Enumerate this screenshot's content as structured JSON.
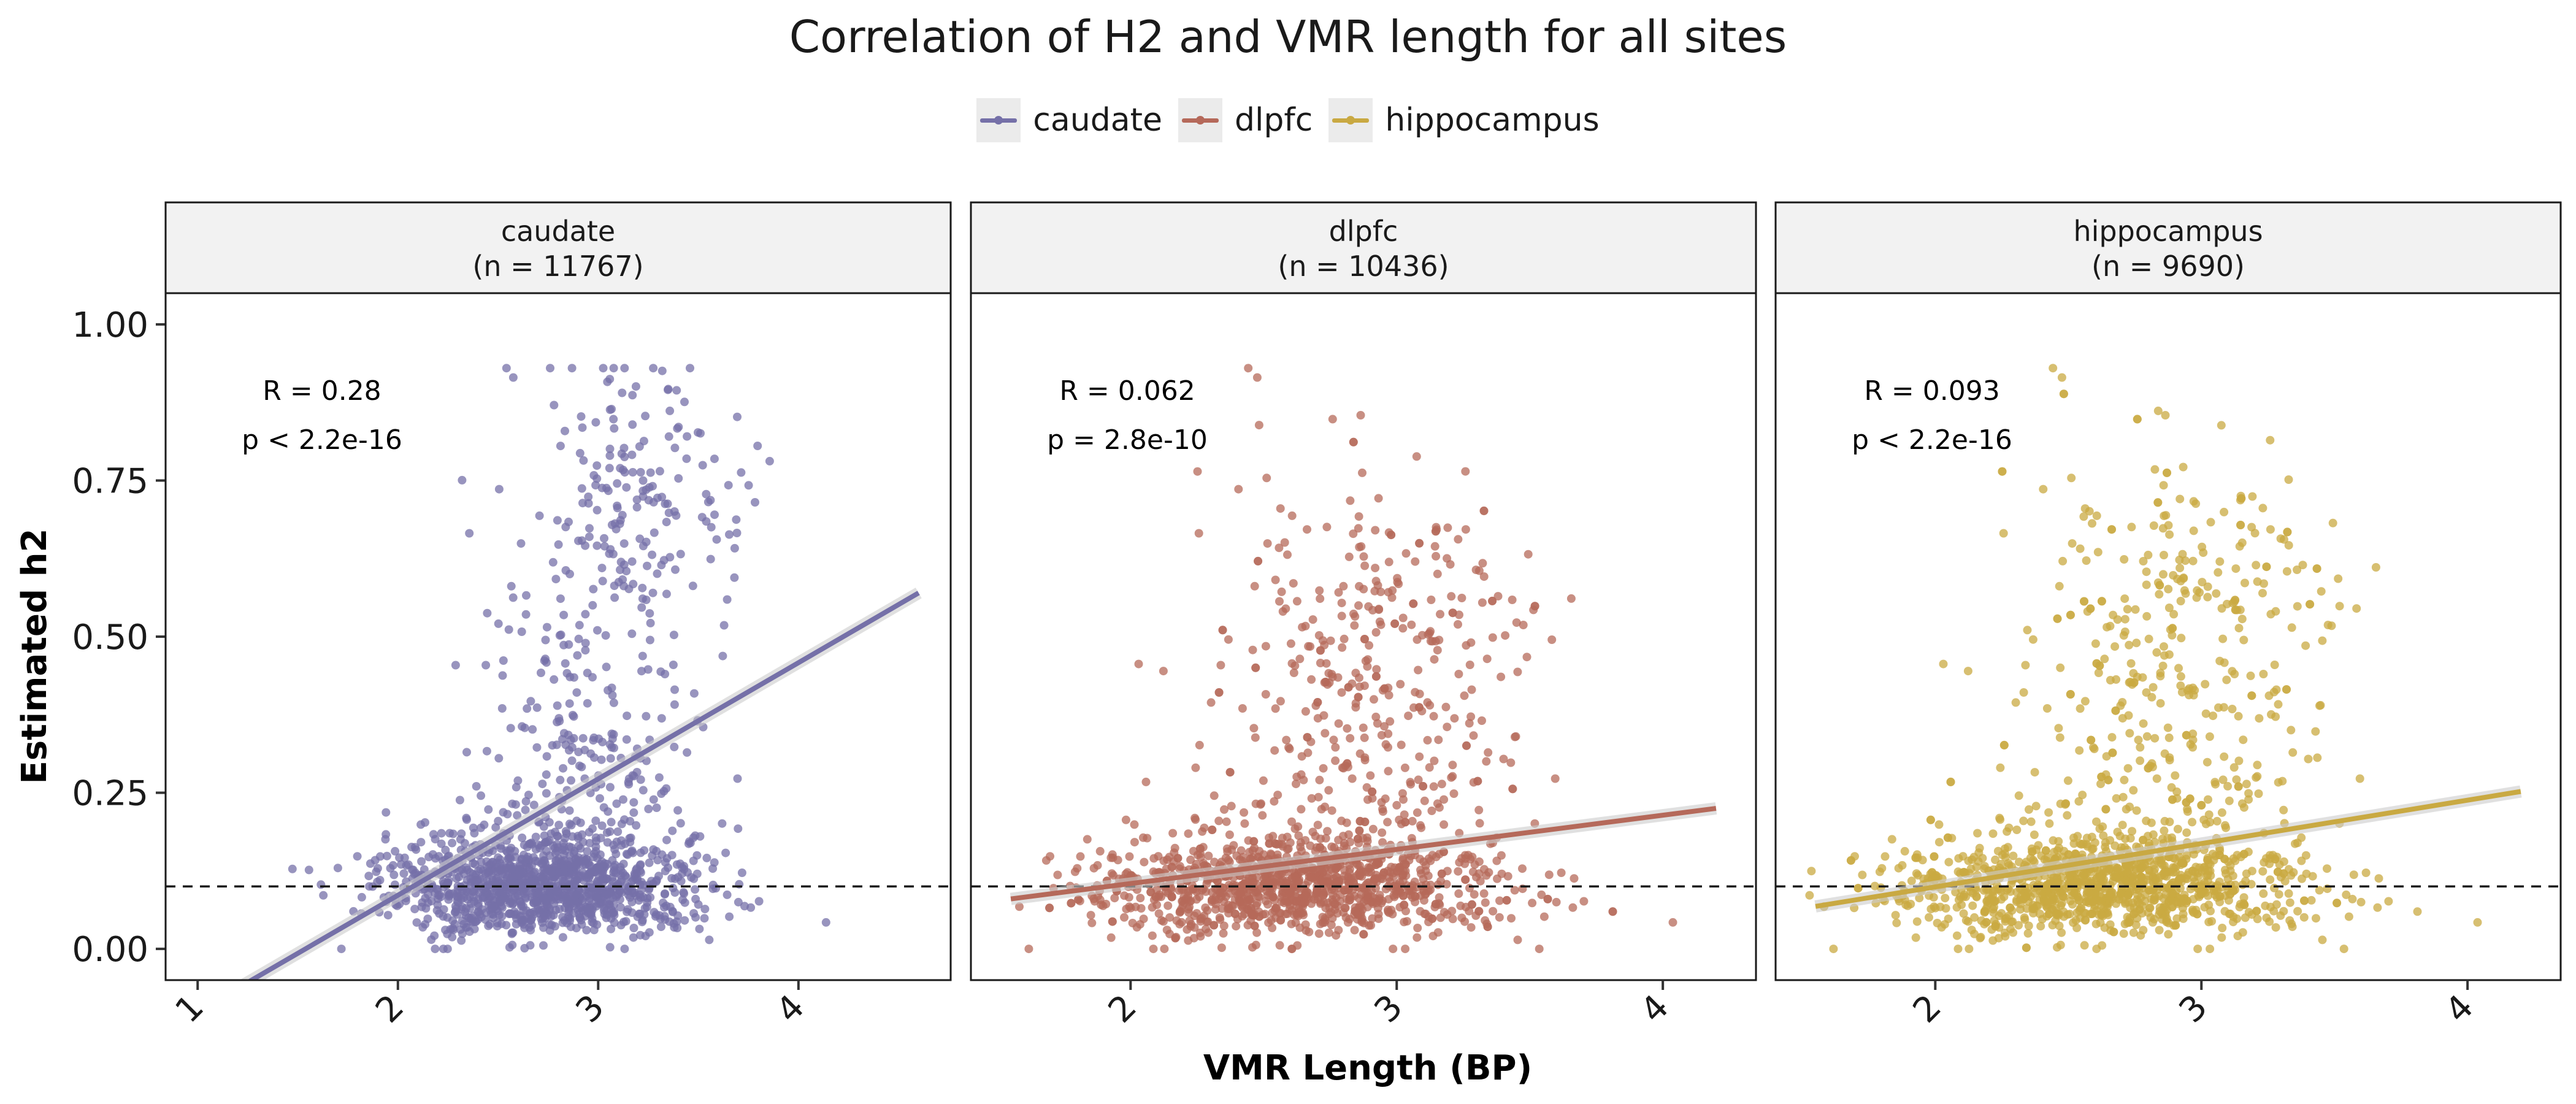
{
  "chart_data": {
    "type": "scatter",
    "title": "Correlation of H2 and VMR length for all sites",
    "xlabel": "VMR Length (BP)",
    "ylabel": "Estimated h2",
    "ylim": [
      -0.05,
      1.05
    ],
    "yticks": [
      "0.00",
      "0.25",
      "0.50",
      "0.75",
      "1.00"
    ],
    "ytick_values": [
      0,
      0.25,
      0.5,
      0.75,
      1.0
    ],
    "reference_line": {
      "y": 0.1,
      "style": "dashed"
    },
    "legend": {
      "placement": "top"
    },
    "grid": false,
    "panels": [
      {
        "name": "caudate",
        "strip_line1": "caudate",
        "strip_line2": "(n = 11767)",
        "n": 11767,
        "color": "#7570A8",
        "xlim": [
          0.84,
          4.76
        ],
        "xticks": [
          "1",
          "2",
          "3",
          "4"
        ],
        "xtick_values": [
          1,
          2,
          3,
          4
        ],
        "R": "R = 0.28",
        "p": "p < 2.2e-16",
        "trend": {
          "x": [
            0.84,
            4.6
          ],
          "y": [
            -0.13,
            0.57
          ]
        },
        "x_range": [
          1.0,
          4.6
        ],
        "cluster_center": [
          2.7,
          0.1
        ],
        "upper_center": [
          3.2,
          0.72
        ]
      },
      {
        "name": "dlpfc",
        "strip_line1": "dlpfc",
        "strip_line2": "(n = 10436)",
        "n": 10436,
        "color": "#B5695A",
        "xlim": [
          1.4,
          4.35
        ],
        "xticks": [
          "2",
          "3",
          "4"
        ],
        "xtick_values": [
          2,
          3,
          4
        ],
        "R": "R = 0.062",
        "p": "p = 2.8e-10",
        "trend": {
          "x": [
            1.55,
            4.2
          ],
          "y": [
            0.08,
            0.225
          ]
        },
        "x_range": [
          1.55,
          4.2
        ],
        "cluster_center": [
          2.6,
          0.1
        ],
        "upper_center": [
          3.0,
          0.5
        ]
      },
      {
        "name": "hippocampus",
        "strip_line1": "hippocampus",
        "strip_line2": "(n = 9690)",
        "n": 9690,
        "color": "#C9A942",
        "xlim": [
          1.4,
          4.35
        ],
        "xticks": [
          "2",
          "3",
          "4"
        ],
        "xtick_values": [
          2,
          3,
          4
        ],
        "R": "R = 0.093",
        "p": "p < 2.2e-16",
        "trend": {
          "x": [
            1.55,
            4.2
          ],
          "y": [
            0.068,
            0.252
          ]
        },
        "x_range": [
          1.5,
          4.2
        ],
        "cluster_center": [
          2.6,
          0.1
        ],
        "upper_center": [
          3.0,
          0.55
        ]
      }
    ]
  },
  "legend_items": [
    {
      "label": "caudate",
      "color": "#7570A8"
    },
    {
      "label": "dlpfc",
      "color": "#B5695A"
    },
    {
      "label": "hippocampus",
      "color": "#C9A942"
    }
  ]
}
